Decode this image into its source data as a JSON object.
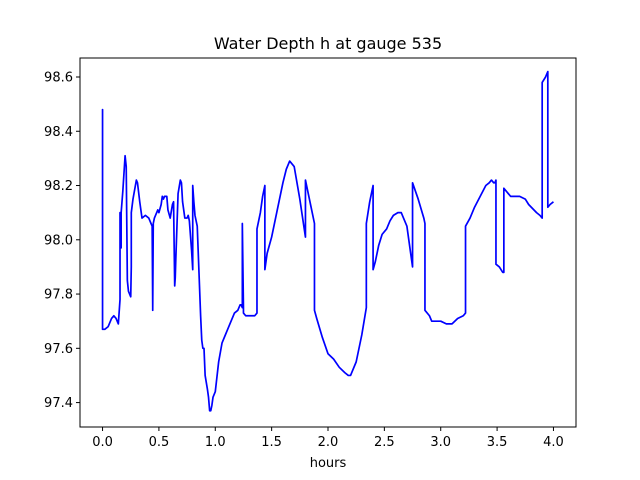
{
  "chart_data": {
    "type": "line",
    "title": "Water Depth h at gauge 535",
    "xlabel": "hours",
    "ylabel": "",
    "xlim": [
      -0.2,
      4.2
    ],
    "ylim": [
      97.31,
      98.67
    ],
    "x_ticks": [
      "0.0",
      "0.5",
      "1.0",
      "1.5",
      "2.0",
      "2.5",
      "3.0",
      "3.5",
      "4.0"
    ],
    "y_ticks": [
      "97.4",
      "97.6",
      "97.8",
      "98.0",
      "98.2",
      "98.4",
      "98.6"
    ],
    "grid": false,
    "legend": "none",
    "line_color": "#0000ff",
    "series": [
      {
        "x": [
          0.0,
          0.0,
          0.0,
          0.02,
          0.05,
          0.08,
          0.1,
          0.12,
          0.14,
          0.155,
          0.155,
          0.165,
          0.165,
          0.18,
          0.2,
          0.21,
          0.22,
          0.23,
          0.25,
          0.255,
          0.255,
          0.27,
          0.3,
          0.31,
          0.33,
          0.35,
          0.38,
          0.41,
          0.43,
          0.44,
          0.445,
          0.445,
          0.45,
          0.46,
          0.46,
          0.49,
          0.5,
          0.52,
          0.53,
          0.54,
          0.55,
          0.57,
          0.58,
          0.6,
          0.62,
          0.63,
          0.64,
          0.645,
          0.65,
          0.66,
          0.67,
          0.69,
          0.7,
          0.71,
          0.73,
          0.75,
          0.76,
          0.77,
          0.79,
          0.8,
          0.8,
          0.81,
          0.82,
          0.84,
          0.87,
          0.88,
          0.89,
          0.9,
          0.91,
          0.93,
          0.94,
          0.95,
          0.96,
          0.97,
          0.98,
          1.0,
          1.03,
          1.06,
          1.09,
          1.11,
          1.14,
          1.17,
          1.2,
          1.22,
          1.23,
          1.24,
          1.24,
          1.25,
          1.25,
          1.27,
          1.3,
          1.35,
          1.37,
          1.37,
          1.4,
          1.42,
          1.44,
          1.44,
          1.46,
          1.5,
          1.55,
          1.6,
          1.63,
          1.66,
          1.7,
          1.75,
          1.8,
          1.8,
          1.85,
          1.88,
          1.88,
          1.9,
          1.95,
          2.0,
          2.05,
          2.1,
          2.15,
          2.18,
          2.2,
          2.25,
          2.3,
          2.34,
          2.34,
          2.37,
          2.4,
          2.4,
          2.42,
          2.45,
          2.48,
          2.52,
          2.55,
          2.58,
          2.62,
          2.65,
          2.7,
          2.75,
          2.75,
          2.8,
          2.85,
          2.86,
          2.86,
          2.9,
          2.92,
          2.95,
          3.0,
          3.05,
          3.1,
          3.15,
          3.2,
          3.22,
          3.22,
          3.26,
          3.3,
          3.35,
          3.4,
          3.43,
          3.45,
          3.47,
          3.48,
          3.49,
          3.49,
          3.52,
          3.55,
          3.56,
          3.56,
          3.6,
          3.62,
          3.7,
          3.75,
          3.78,
          3.85,
          3.88,
          3.9,
          3.9,
          3.93,
          3.95,
          3.95,
          3.97,
          4.0
        ],
        "values": [
          97.98,
          98.48,
          97.67,
          97.67,
          97.68,
          97.71,
          97.72,
          97.71,
          97.69,
          97.78,
          98.1,
          97.97,
          98.1,
          98.18,
          98.31,
          98.27,
          97.85,
          97.81,
          97.79,
          97.9,
          98.1,
          98.15,
          98.22,
          98.21,
          98.14,
          98.08,
          98.09,
          98.08,
          98.06,
          98.05,
          97.75,
          97.74,
          98.06,
          98.08,
          98.08,
          98.11,
          98.1,
          98.13,
          98.16,
          98.15,
          98.16,
          98.16,
          98.11,
          98.08,
          98.13,
          98.14,
          97.83,
          97.86,
          97.93,
          98.05,
          98.17,
          98.22,
          98.21,
          98.14,
          98.08,
          98.08,
          98.09,
          98.07,
          97.96,
          97.89,
          98.2,
          98.14,
          98.09,
          98.05,
          97.72,
          97.63,
          97.6,
          97.6,
          97.5,
          97.45,
          97.42,
          97.37,
          97.37,
          97.39,
          97.42,
          97.44,
          97.55,
          97.62,
          97.65,
          97.67,
          97.7,
          97.73,
          97.74,
          97.76,
          97.76,
          97.75,
          98.06,
          97.75,
          97.73,
          97.72,
          97.72,
          97.72,
          97.73,
          98.04,
          98.1,
          98.16,
          98.2,
          97.89,
          97.95,
          98.01,
          98.11,
          98.21,
          98.26,
          98.29,
          98.27,
          98.15,
          98.01,
          98.22,
          98.12,
          98.06,
          97.74,
          97.71,
          97.64,
          97.58,
          97.56,
          97.53,
          97.51,
          97.5,
          97.5,
          97.55,
          97.65,
          97.75,
          98.06,
          98.14,
          98.2,
          97.89,
          97.92,
          97.98,
          98.02,
          98.04,
          98.07,
          98.09,
          98.1,
          98.1,
          98.05,
          97.9,
          98.21,
          98.15,
          98.08,
          98.06,
          97.74,
          97.72,
          97.7,
          97.7,
          97.7,
          97.69,
          97.69,
          97.71,
          97.72,
          97.73,
          98.05,
          98.08,
          98.12,
          98.16,
          98.2,
          98.21,
          98.22,
          98.21,
          98.21,
          98.22,
          97.91,
          97.9,
          97.88,
          97.88,
          98.19,
          98.17,
          98.16,
          98.16,
          98.15,
          98.13,
          98.1,
          98.09,
          98.08,
          98.58,
          98.6,
          98.62,
          98.12,
          98.13,
          98.14
        ]
      }
    ]
  }
}
